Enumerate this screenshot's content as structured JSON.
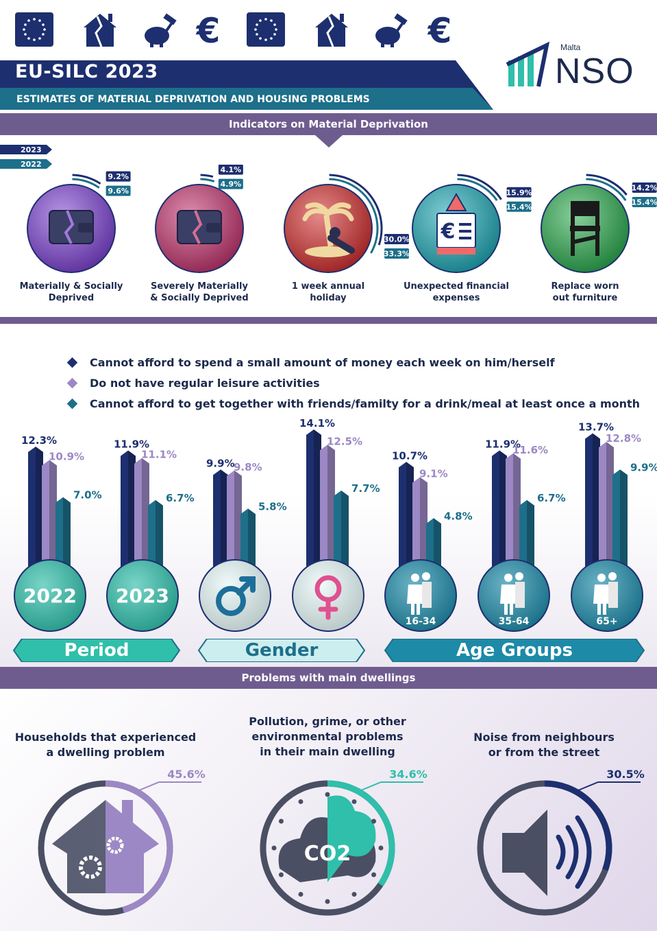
{
  "header": {
    "title": "EU-SILC 2023",
    "subtitle": "ESTIMATES OF MATERIAL DEPRIVATION AND HOUSING PROBLEMS",
    "logo_small": "Malta",
    "logo_big": "NSO",
    "icons": [
      "eu-flag-icon",
      "broken-house-icon",
      "piggy-bank-hammer-icon",
      "euro-icon",
      "eu-flag-icon",
      "broken-house-icon",
      "piggy-bank-hammer-icon",
      "euro-icon"
    ]
  },
  "colors": {
    "navy": "#1d2f6f",
    "purple": "#6f5c8f",
    "lavender": "#9c88c4",
    "teal": "#1d6f8a",
    "turquoise": "#2fbfaa",
    "label_2023": "#1d2f6f",
    "label_2022": "#1d6f8a"
  },
  "section1": {
    "band": "Indicators on Material Deprivation",
    "legend_2023": "2023",
    "legend_2022": "2022",
    "indicators": [
      {
        "label_line1": "Materially & Socially",
        "label_line2": "Deprived",
        "v2023": "9.2%",
        "v2022": "9.6%",
        "icon": "broken-wallet-icon",
        "color": "#7a3fd0"
      },
      {
        "label_line1": "Severely Materially",
        "label_line2": "& Socially Deprived",
        "v2023": "4.1%",
        "v2022": "4.9%",
        "icon": "collapsing-wallet-icon",
        "color": "#c0306a"
      },
      {
        "label_line1": "1 week annual",
        "label_line2": "holiday",
        "v2023": "30.0%",
        "v2022": "33.3%",
        "icon": "palm-tree-icon",
        "color": "#d02a2a"
      },
      {
        "label_line1": "Unexpected financial",
        "label_line2": "expenses",
        "v2023": "15.9%",
        "v2022": "15.4%",
        "icon": "euro-bill-warning-icon",
        "color": "#1aa6b2"
      },
      {
        "label_line1": "Replace worn",
        "label_line2": "out furniture",
        "v2023": "14.2%",
        "v2022": "15.4%",
        "icon": "broken-chair-icon",
        "color": "#26a84a"
      }
    ]
  },
  "section2": {
    "legend": [
      {
        "text": "Cannot afford to spend a small amount of money each week on him/herself",
        "color": "#1d2f6f"
      },
      {
        "text": "Do not have regular leisure activities",
        "color": "#9c88c4"
      },
      {
        "text": "Cannot afford to get together with friends/familty for a drink/meal at least once a month",
        "color": "#1d6f8a"
      }
    ],
    "group_labels": {
      "period": "Period",
      "gender": "Gender",
      "age": "Age Groups"
    }
  },
  "chart_data": {
    "type": "bar",
    "categories": [
      "2022",
      "2023",
      "Male",
      "Female",
      "16-34",
      "35-64",
      "65+"
    ],
    "category_badges": [
      "2022",
      "2023",
      "male-symbol-icon",
      "female-symbol-icon",
      "16-34",
      "35-64",
      "65+"
    ],
    "series": [
      {
        "name": "Cannot afford to spend a small amount of money each week on him/herself",
        "values": [
          12.3,
          11.9,
          9.9,
          14.1,
          10.7,
          11.9,
          13.7
        ],
        "labels": [
          "12.3%",
          "11.9%",
          "9.9%",
          "14.1%",
          "10.7%",
          "11.9%",
          "13.7%"
        ]
      },
      {
        "name": "Do not have regular leisure activities",
        "values": [
          10.9,
          11.1,
          9.8,
          12.5,
          9.1,
          11.6,
          12.8
        ],
        "labels": [
          "10.9%",
          "11.1%",
          "9.8%",
          "12.5%",
          "9.1%",
          "11.6%",
          "12.8%"
        ]
      },
      {
        "name": "Cannot afford to get together with friends/familty for a drink/meal at least once a month",
        "values": [
          7.0,
          6.7,
          5.8,
          7.7,
          4.8,
          6.7,
          9.9
        ],
        "labels": [
          "7.0%",
          "6.7%",
          "5.8%",
          "7.7%",
          "4.8%",
          "6.7%",
          "9.9%"
        ]
      }
    ],
    "ylim": [
      0,
      15
    ]
  },
  "section3": {
    "band": "Problems with main dwellings",
    "items": [
      {
        "title_lines": [
          "Households that experienced",
          "a dwelling problem"
        ],
        "value": "45.6%",
        "pct": 45.6,
        "icon": "house-gears-icon",
        "color": "#9c88c4"
      },
      {
        "title_lines": [
          "Pollution, grime, or other",
          "environmental problems",
          "in their main dwelling"
        ],
        "value": "34.6%",
        "pct": 34.6,
        "icon": "co2-cloud-icon",
        "color": "#2fbfaa",
        "icon_text": "CO2"
      },
      {
        "title_lines": [
          "Noise from neighbours",
          "or from the street"
        ],
        "value": "30.5%",
        "pct": 30.5,
        "icon": "speaker-icon",
        "color": "#1d2f6f"
      }
    ]
  }
}
